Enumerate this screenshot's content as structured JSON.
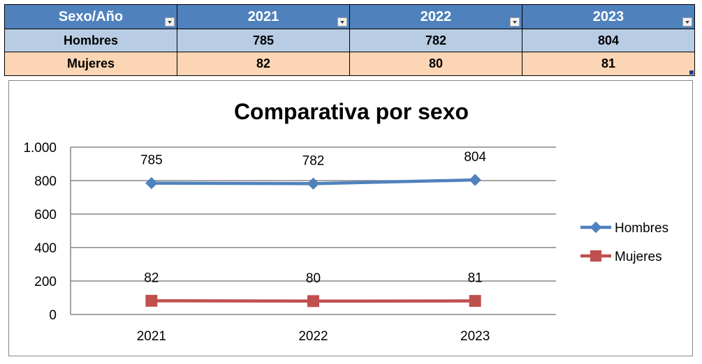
{
  "table": {
    "headers": [
      "Sexo/Año",
      "2021",
      "2022",
      "2023"
    ],
    "rows": [
      {
        "label": "Hombres",
        "values": [
          "785",
          "782",
          "804"
        ]
      },
      {
        "label": "Mujeres",
        "values": [
          "82",
          "80",
          "81"
        ]
      }
    ],
    "colors": {
      "header": "#4f81bd",
      "row_hombres": "#b8cce4",
      "row_mujeres": "#fcd5b4"
    }
  },
  "chart_data": {
    "type": "line",
    "title": "Comparativa por sexo",
    "categories": [
      "2021",
      "2022",
      "2023"
    ],
    "series": [
      {
        "name": "Hombres",
        "values": [
          785,
          782,
          804
        ],
        "labels": [
          "785",
          "782",
          "804"
        ],
        "color": "#4f81bd",
        "marker": "diamond"
      },
      {
        "name": "Mujeres",
        "values": [
          82,
          80,
          81
        ],
        "labels": [
          "82",
          "80",
          "81"
        ],
        "color": "#c0504d",
        "marker": "square"
      }
    ],
    "ylim": [
      0,
      1000
    ],
    "yticks": [
      0,
      200,
      400,
      600,
      800,
      1000
    ],
    "ytick_labels": [
      "0",
      "200",
      "400",
      "600",
      "800",
      "1.000"
    ],
    "grid": true,
    "legend": "right"
  }
}
